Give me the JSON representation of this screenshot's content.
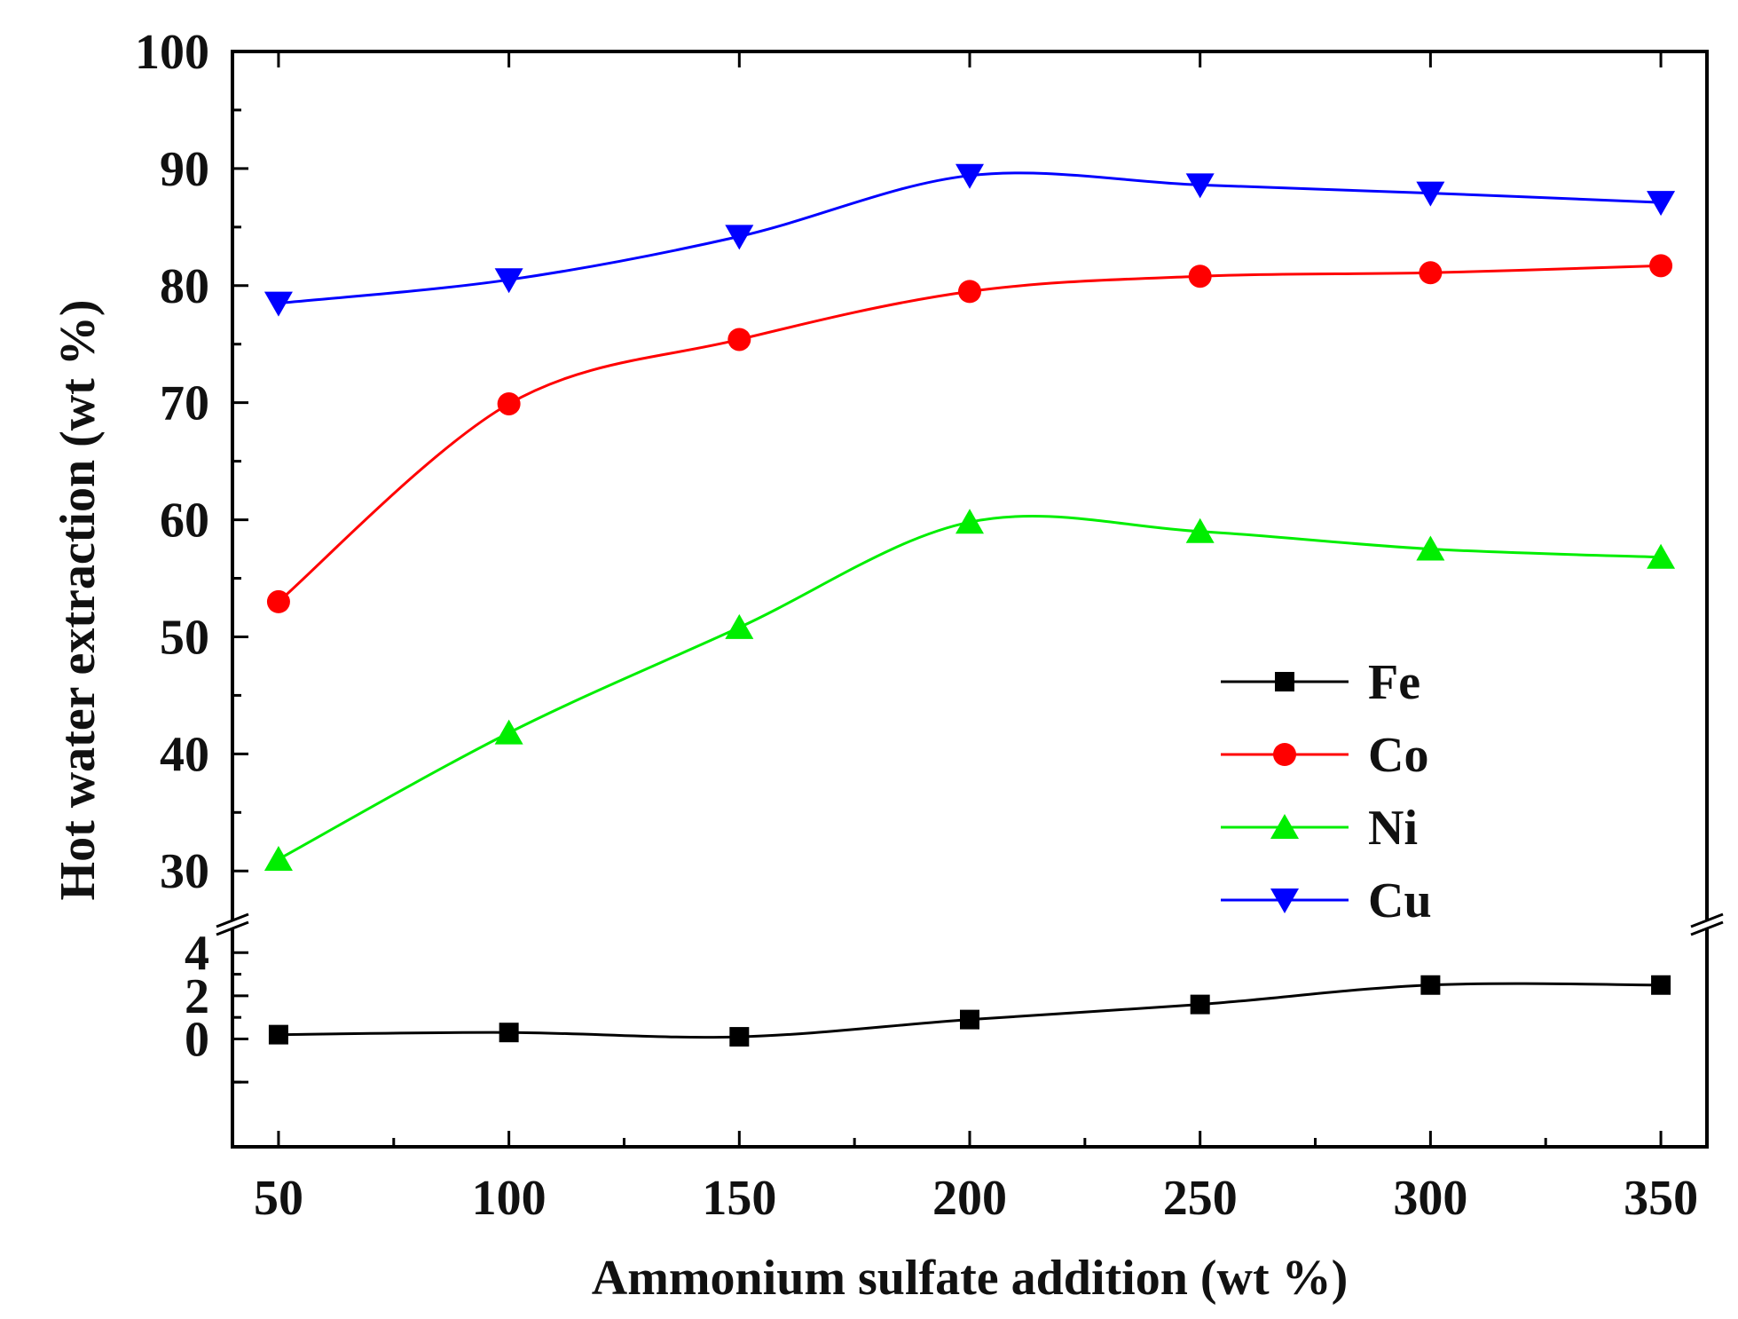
{
  "chart_data": {
    "type": "line",
    "title": "",
    "xlabel": "Ammonium sulfate addition (wt %)",
    "ylabel": "Hot water extraction (wt %)",
    "x": [
      50,
      100,
      150,
      200,
      250,
      300,
      350
    ],
    "xticks": [
      "50",
      "100",
      "150",
      "200",
      "250",
      "300",
      "350"
    ],
    "xlim": [
      40,
      360
    ],
    "y_axis_broken": true,
    "y_lower_range": [
      -5,
      5
    ],
    "y_upper_range": [
      26,
      100
    ],
    "yticks_lower": [
      "0",
      "2",
      "4"
    ],
    "yticks_upper": [
      "30",
      "40",
      "50",
      "60",
      "70",
      "80",
      "90",
      "100"
    ],
    "legend_position": "middle-right",
    "series": [
      {
        "name": "Fe",
        "marker": "square",
        "color": "#000000",
        "values": [
          0.2,
          0.3,
          0.1,
          0.9,
          1.6,
          2.5,
          2.5
        ],
        "points": [
          0.2,
          0.3,
          0.1,
          0.9,
          1.6,
          2.5
        ]
      },
      {
        "name": "Co",
        "marker": "circle",
        "color": "#ff0000",
        "values": [
          53.0,
          69.9,
          75.4,
          79.5,
          80.8,
          81.1,
          81.7
        ]
      },
      {
        "name": "Ni",
        "marker": "triangle-up",
        "color": "#00ee00",
        "values": [
          31.0,
          41.8,
          50.8,
          59.8,
          59.0,
          57.5,
          56.8
        ]
      },
      {
        "name": "Cu",
        "marker": "triangle-down",
        "color": "#0000ff",
        "values": [
          78.5,
          80.5,
          84.2,
          89.4,
          88.6,
          87.9,
          87.1
        ]
      }
    ]
  }
}
